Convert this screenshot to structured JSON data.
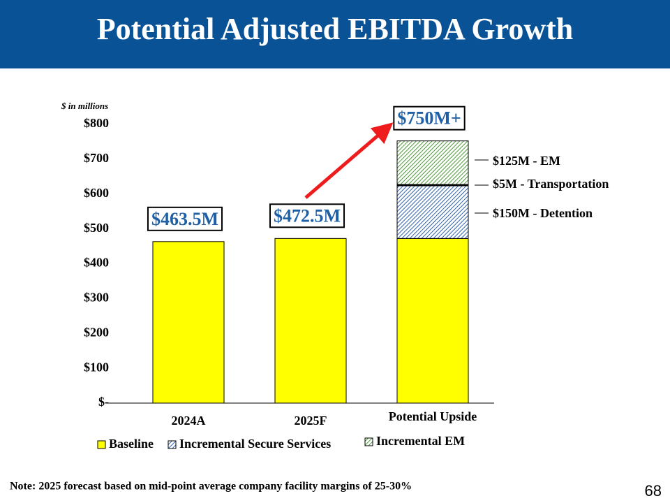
{
  "header": {
    "title": "Potential Adjusted EBITDA Growth"
  },
  "chart_data": {
    "type": "stacked_bar",
    "y_axis_label": "$ in millions",
    "categories": [
      "2024A",
      "2025F",
      "Potential Upside"
    ],
    "series": [
      {
        "name": "Baseline",
        "color": "#ffff00",
        "pattern": "solid",
        "values": [
          463.5,
          472.5,
          472.5
        ]
      },
      {
        "name": "Incremental Secure Services",
        "color": "#2f62b0",
        "pattern": "hatch",
        "values": [
          null,
          null,
          155
        ]
      },
      {
        "name": "Incremental EM",
        "color": "#4f9a3a",
        "pattern": "hatch",
        "values": [
          null,
          null,
          125
        ]
      }
    ],
    "ylim": [
      0,
      800
    ],
    "yticks": [
      {
        "value": 0,
        "label": "$-"
      },
      {
        "value": 100,
        "label": "$100"
      },
      {
        "value": 200,
        "label": "$200"
      },
      {
        "value": 300,
        "label": "$300"
      },
      {
        "value": 400,
        "label": "$400"
      },
      {
        "value": 500,
        "label": "$500"
      },
      {
        "value": 600,
        "label": "$600"
      },
      {
        "value": 700,
        "label": "$700"
      },
      {
        "value": 800,
        "label": "$800"
      }
    ],
    "callouts": [
      "$463.5M",
      "$472.5M",
      "$750M+"
    ],
    "annotations": [
      "$125M - EM",
      "$5M - Transportation",
      "$150M - Detention"
    ]
  },
  "footer": {
    "note": "Note: 2025 forecast based on mid-point average company facility margins of 25-30%",
    "page": "68"
  }
}
